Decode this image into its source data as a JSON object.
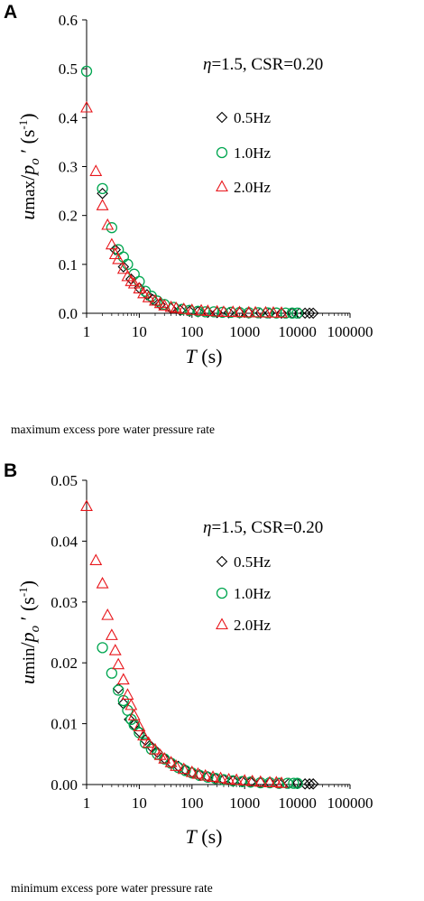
{
  "panel_a": {
    "letter": "A",
    "caption": "maximum excess pore water pressure rate"
  },
  "panel_b": {
    "letter": "B",
    "caption": "minimum excess pore water pressure rate"
  },
  "colors": {
    "0.5Hz": "#000000",
    "1.0Hz": "#00a650",
    "2.0Hz": "#e8161b"
  },
  "chart_data": [
    {
      "type": "scatter",
      "xscale": "log",
      "xlim": [
        1,
        100000
      ],
      "ylim": [
        0,
        0.6
      ],
      "xticks": [
        "1",
        "10",
        "100",
        "1000",
        "10000",
        "100000"
      ],
      "yticks": [
        "0.0",
        "0.1",
        "0.2",
        "0.3",
        "0.4",
        "0.5",
        "0.6"
      ],
      "annotation": "η=1.5, CSR=0.20",
      "xlabel": {
        "main": "T",
        "unit": " (s)"
      },
      "ylabel": {
        "u": "u",
        "sub": "max",
        "slash": "/",
        "p": "p",
        "psub": "o",
        "prime": "′",
        "unit": " (s",
        "exp": "-1",
        "close": ")"
      },
      "series": [
        {
          "name": "0.5Hz",
          "marker": "diamond",
          "points": [
            [
              2,
              0.245
            ],
            [
              3.5,
              0.13
            ],
            [
              5,
              0.095
            ],
            [
              7,
              0.07
            ],
            [
              10,
              0.052
            ],
            [
              14,
              0.038
            ],
            [
              18,
              0.028
            ],
            [
              25,
              0.018
            ],
            [
              40,
              0.01
            ],
            [
              60,
              0.006
            ],
            [
              90,
              0.004
            ],
            [
              130,
              0.003
            ],
            [
              200,
              0.002
            ],
            [
              300,
              0.0015
            ],
            [
              500,
              0.001
            ],
            [
              800,
              0.0008
            ],
            [
              1200,
              0.0006
            ],
            [
              2000,
              0.0005
            ],
            [
              3000,
              0.0004
            ],
            [
              5000,
              0.0003
            ],
            [
              8000,
              0.0003
            ],
            [
              11000,
              0.0002
            ],
            [
              14000,
              0.0002
            ],
            [
              17000,
              0.0002
            ],
            [
              20000,
              0.0002
            ]
          ]
        },
        {
          "name": "1.0Hz",
          "marker": "circle",
          "points": [
            [
              1,
              0.495
            ],
            [
              2,
              0.255
            ],
            [
              3,
              0.175
            ],
            [
              4,
              0.13
            ],
            [
              5,
              0.115
            ],
            [
              6,
              0.1
            ],
            [
              8,
              0.08
            ],
            [
              10,
              0.065
            ],
            [
              13,
              0.045
            ],
            [
              17,
              0.035
            ],
            [
              22,
              0.025
            ],
            [
              30,
              0.018
            ],
            [
              45,
              0.012
            ],
            [
              65,
              0.008
            ],
            [
              90,
              0.006
            ],
            [
              130,
              0.004
            ],
            [
              180,
              0.003
            ],
            [
              260,
              0.003
            ],
            [
              380,
              0.002
            ],
            [
              550,
              0.002
            ],
            [
              800,
              0.0015
            ],
            [
              1200,
              0.0012
            ],
            [
              1800,
              0.001
            ],
            [
              2700,
              0.0008
            ],
            [
              4000,
              0.0006
            ],
            [
              6000,
              0.0005
            ],
            [
              8000,
              0.0004
            ],
            [
              10000,
              0.0004
            ]
          ]
        },
        {
          "name": "2.0Hz",
          "marker": "triangle",
          "points": [
            [
              1,
              0.42
            ],
            [
              1.5,
              0.29
            ],
            [
              2,
              0.22
            ],
            [
              2.5,
              0.18
            ],
            [
              3,
              0.14
            ],
            [
              3.5,
              0.12
            ],
            [
              4,
              0.11
            ],
            [
              5,
              0.09
            ],
            [
              6,
              0.075
            ],
            [
              7,
              0.065
            ],
            [
              8,
              0.06
            ],
            [
              10,
              0.05
            ],
            [
              12,
              0.04
            ],
            [
              15,
              0.032
            ],
            [
              20,
              0.025
            ],
            [
              25,
              0.02
            ],
            [
              30,
              0.015
            ],
            [
              40,
              0.012
            ],
            [
              50,
              0.01
            ],
            [
              70,
              0.008
            ],
            [
              100,
              0.006
            ],
            [
              150,
              0.005
            ],
            [
              200,
              0.004
            ],
            [
              300,
              0.003
            ],
            [
              400,
              0.002
            ],
            [
              600,
              0.002
            ],
            [
              800,
              0.0015
            ],
            [
              1200,
              0.001
            ],
            [
              1600,
              0.001
            ],
            [
              2500,
              0.0008
            ],
            [
              3500,
              0.0006
            ],
            [
              5000,
              0.0005
            ]
          ]
        }
      ]
    },
    {
      "type": "scatter",
      "xscale": "log",
      "xlim": [
        1,
        100000
      ],
      "ylim": [
        0,
        0.05
      ],
      "xticks": [
        "1",
        "10",
        "100",
        "1000",
        "10000",
        "100000"
      ],
      "yticks": [
        "0.00",
        "0.01",
        "0.02",
        "0.03",
        "0.04",
        "0.05"
      ],
      "annotation": "η=1.5, CSR=0.20",
      "xlabel": {
        "main": "T",
        "unit": " (s)"
      },
      "ylabel": {
        "u": "u",
        "sub": "min",
        "slash": "/",
        "p": "p",
        "psub": "o",
        "prime": "′",
        "unit": " (s",
        "exp": "-1",
        "close": ")"
      },
      "series": [
        {
          "name": "0.5Hz",
          "marker": "diamond",
          "points": [
            [
              4,
              0.0158
            ],
            [
              5,
              0.0133
            ],
            [
              6.5,
              0.0107
            ],
            [
              8,
              0.0098
            ],
            [
              10,
              0.0087
            ],
            [
              13,
              0.0073
            ],
            [
              17,
              0.0062
            ],
            [
              22,
              0.0053
            ],
            [
              30,
              0.0043
            ],
            [
              40,
              0.0036
            ],
            [
              55,
              0.003
            ],
            [
              75,
              0.0024
            ],
            [
              100,
              0.002
            ],
            [
              140,
              0.0016
            ],
            [
              200,
              0.0013
            ],
            [
              280,
              0.001
            ],
            [
              400,
              0.0008
            ],
            [
              600,
              0.0006
            ],
            [
              900,
              0.0005
            ],
            [
              1300,
              0.0004
            ],
            [
              2000,
              0.0003
            ],
            [
              3000,
              0.0003
            ],
            [
              4500,
              0.0002
            ],
            [
              7000,
              0.0002
            ],
            [
              10000,
              0.0002
            ],
            [
              14000,
              0.0001
            ],
            [
              17000,
              0.0001
            ],
            [
              20000,
              0.0001
            ]
          ]
        },
        {
          "name": "1.0Hz",
          "marker": "circle",
          "points": [
            [
              2,
              0.0225
            ],
            [
              3,
              0.0183
            ],
            [
              4,
              0.0155
            ],
            [
              5,
              0.0138
            ],
            [
              6,
              0.0122
            ],
            [
              7,
              0.0107
            ],
            [
              8,
              0.0098
            ],
            [
              10,
              0.0085
            ],
            [
              13,
              0.0068
            ],
            [
              17,
              0.0058
            ],
            [
              22,
              0.005
            ],
            [
              30,
              0.0042
            ],
            [
              40,
              0.0035
            ],
            [
              55,
              0.0028
            ],
            [
              75,
              0.0023
            ],
            [
              100,
              0.0019
            ],
            [
              140,
              0.0015
            ],
            [
              200,
              0.0012
            ],
            [
              280,
              0.001
            ],
            [
              400,
              0.0008
            ],
            [
              600,
              0.0006
            ],
            [
              900,
              0.0005
            ],
            [
              1300,
              0.0004
            ],
            [
              2000,
              0.0003
            ],
            [
              3000,
              0.0003
            ],
            [
              4500,
              0.0002
            ],
            [
              6500,
              0.0002
            ],
            [
              8500,
              0.0002
            ],
            [
              10000,
              0.0002
            ]
          ]
        },
        {
          "name": "2.0Hz",
          "marker": "triangle",
          "points": [
            [
              1,
              0.0457
            ],
            [
              1.5,
              0.0368
            ],
            [
              2,
              0.033
            ],
            [
              2.5,
              0.0278
            ],
            [
              3,
              0.0245
            ],
            [
              3.5,
              0.022
            ],
            [
              4,
              0.0197
            ],
            [
              5,
              0.0172
            ],
            [
              6,
              0.0147
            ],
            [
              7,
              0.013
            ],
            [
              8,
              0.0113
            ],
            [
              10,
              0.0095
            ],
            [
              12,
              0.008
            ],
            [
              15,
              0.0068
            ],
            [
              20,
              0.0057
            ],
            [
              25,
              0.0048
            ],
            [
              30,
              0.0042
            ],
            [
              40,
              0.0036
            ],
            [
              50,
              0.003
            ],
            [
              70,
              0.0025
            ],
            [
              100,
              0.002
            ],
            [
              130,
              0.0017
            ],
            [
              180,
              0.0014
            ],
            [
              250,
              0.0012
            ],
            [
              350,
              0.001
            ],
            [
              500,
              0.0008
            ],
            [
              700,
              0.0007
            ],
            [
              1000,
              0.0006
            ],
            [
              1400,
              0.0005
            ],
            [
              2000,
              0.0004
            ],
            [
              3000,
              0.0003
            ],
            [
              4000,
              0.0003
            ],
            [
              5000,
              0.0002
            ]
          ]
        }
      ]
    }
  ]
}
